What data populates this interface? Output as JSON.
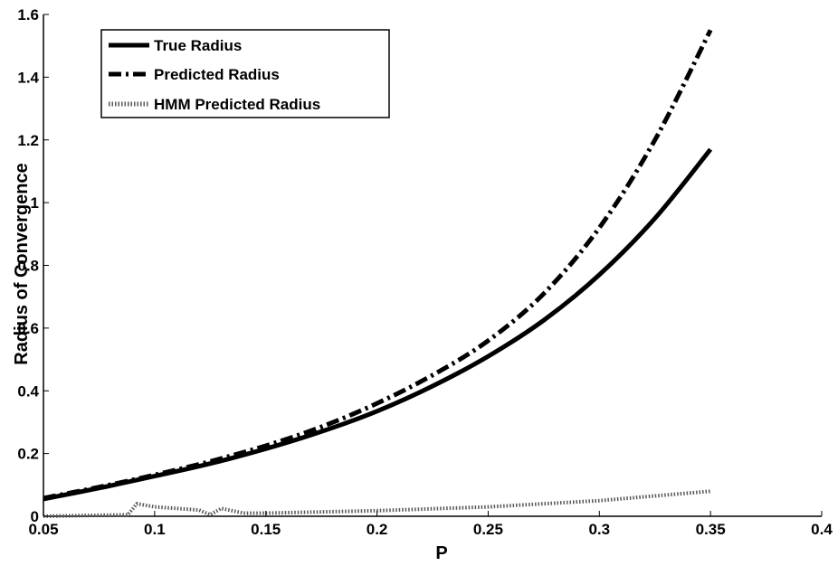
{
  "chart_data": {
    "type": "line",
    "title": "",
    "xlabel": "P",
    "ylabel": "Radius of Convergence",
    "xlim": [
      0.05,
      0.4
    ],
    "ylim": [
      0,
      1.6
    ],
    "xticks": [
      "0.05",
      "0.1",
      "0.15",
      "0.2",
      "0.25",
      "0.3",
      "0.35",
      "0.4"
    ],
    "yticks": [
      "0",
      "0.2",
      "0.4",
      "0.6",
      "0.8",
      "1",
      "1.2",
      "1.4",
      "1.6"
    ],
    "grid": false,
    "legend_position": "top-left",
    "series": [
      {
        "name": "True Radius",
        "style": "solid",
        "color": "#000000",
        "x": [
          0.05,
          0.075,
          0.1,
          0.125,
          0.15,
          0.175,
          0.2,
          0.225,
          0.25,
          0.275,
          0.3,
          0.325,
          0.35
        ],
        "y": [
          0.055,
          0.09,
          0.128,
          0.168,
          0.215,
          0.27,
          0.335,
          0.415,
          0.51,
          0.625,
          0.77,
          0.95,
          1.17
        ]
      },
      {
        "name": "Predicted Radius",
        "style": "dash-dot",
        "color": "#000000",
        "x": [
          0.05,
          0.075,
          0.1,
          0.125,
          0.15,
          0.175,
          0.2,
          0.225,
          0.25,
          0.275,
          0.3,
          0.325,
          0.35
        ],
        "y": [
          0.058,
          0.093,
          0.132,
          0.175,
          0.225,
          0.285,
          0.36,
          0.45,
          0.56,
          0.71,
          0.92,
          1.2,
          1.55
        ]
      },
      {
        "name": "HMM Predicted Radius",
        "style": "dotted",
        "color": "#555555",
        "x": [
          0.05,
          0.088,
          0.092,
          0.1,
          0.11,
          0.12,
          0.125,
          0.13,
          0.14,
          0.15,
          0.2,
          0.25,
          0.3,
          0.35
        ],
        "y": [
          0.0,
          0.005,
          0.04,
          0.03,
          0.025,
          0.02,
          0.005,
          0.025,
          0.01,
          0.01,
          0.018,
          0.03,
          0.05,
          0.08
        ]
      }
    ]
  }
}
